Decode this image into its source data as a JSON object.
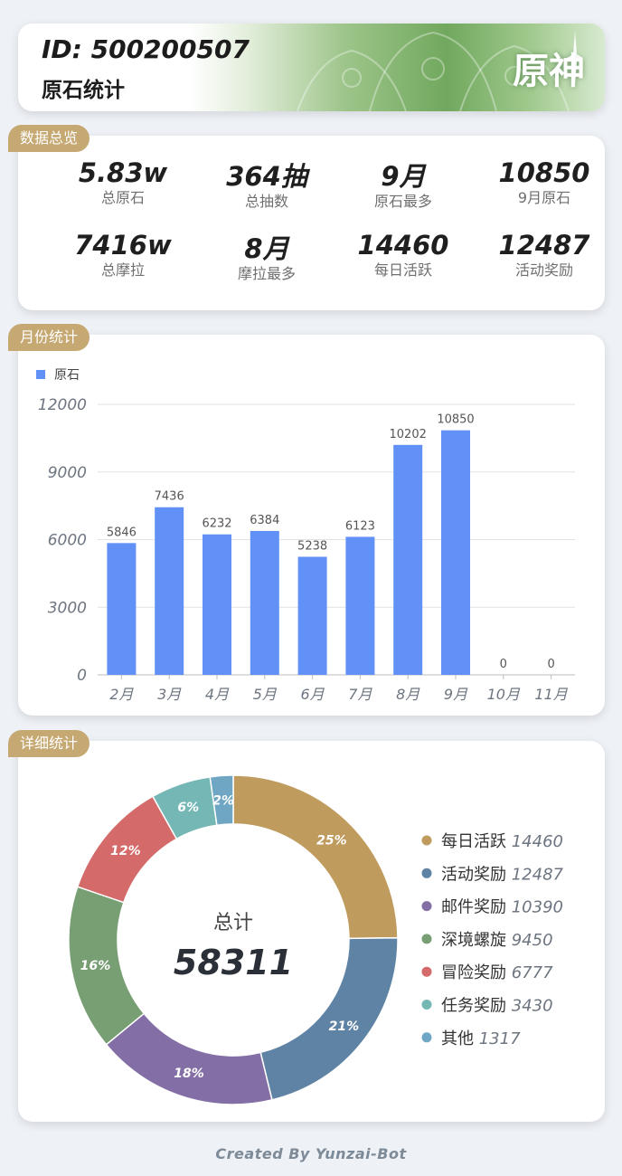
{
  "header": {
    "id_text": "ID: 500200507",
    "subtitle": "原石统计",
    "logo_text": "原神"
  },
  "sections": {
    "overview": "数据总览",
    "monthly": "月份统计",
    "detail": "详细统计"
  },
  "overview": {
    "stats": [
      {
        "value": "5.83w",
        "label": "总原石"
      },
      {
        "value": "364抽",
        "label": "总抽数"
      },
      {
        "value": "9月",
        "label": "原石最多"
      },
      {
        "value": "10850",
        "label": "9月原石"
      },
      {
        "value": "7416w",
        "label": "总摩拉"
      },
      {
        "value": "8月",
        "label": "摩拉最多"
      },
      {
        "value": "14460",
        "label": "每日活跃"
      },
      {
        "value": "12487",
        "label": "活动奖励"
      }
    ]
  },
  "chart_data": [
    {
      "type": "bar",
      "title": "月份统计",
      "legend": [
        "原石"
      ],
      "categories": [
        "2月",
        "3月",
        "4月",
        "5月",
        "6月",
        "7月",
        "8月",
        "9月",
        "10月",
        "11月"
      ],
      "values": [
        5846,
        7436,
        6232,
        6384,
        5238,
        6123,
        10202,
        10850,
        0,
        0
      ],
      "yticks": [
        0,
        3000,
        6000,
        9000,
        12000
      ],
      "ylim": [
        0,
        12000
      ],
      "color": "#6191f6"
    },
    {
      "type": "pie",
      "title": "详细统计",
      "center_label": "总计",
      "total": "58311",
      "slices": [
        {
          "name": "每日活跃",
          "value": 14460,
          "percent": "25%",
          "color": "#bf9b5e"
        },
        {
          "name": "活动奖励",
          "value": 12487,
          "percent": "21%",
          "color": "#5f83a4"
        },
        {
          "name": "邮件奖励",
          "value": 10390,
          "percent": "18%",
          "color": "#836fa6"
        },
        {
          "name": "深境螺旋",
          "value": 9450,
          "percent": "16%",
          "color": "#789e73"
        },
        {
          "name": "冒险奖励",
          "value": 6777,
          "percent": "12%",
          "color": "#d46a6a"
        },
        {
          "name": "任务奖励",
          "value": 3430,
          "percent": "6%",
          "color": "#75b7b5"
        },
        {
          "name": "其他",
          "value": 1317,
          "percent": "2%",
          "color": "#6fa6c4"
        }
      ]
    }
  ],
  "footer": "Created By Yunzai-Bot"
}
